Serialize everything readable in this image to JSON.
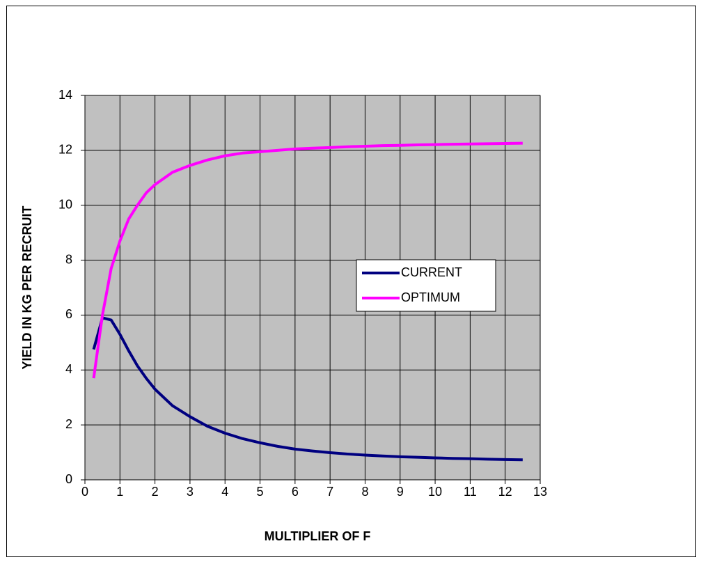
{
  "chart_data": {
    "type": "line",
    "xlabel": "MULTIPLIER OF F",
    "ylabel": "YIELD IN KG PER RECRUIT",
    "x": [
      0.25,
      0.5,
      0.75,
      1,
      1.25,
      1.5,
      1.75,
      2,
      2.5,
      3,
      3.5,
      4,
      4.5,
      5,
      5.5,
      6,
      6.5,
      7,
      7.5,
      8,
      8.5,
      9,
      9.5,
      10,
      10.5,
      11,
      11.5,
      12,
      12.5
    ],
    "series": [
      {
        "name": "CURRENT",
        "color": "#000080",
        "values": [
          4.75,
          5.9,
          5.82,
          5.3,
          4.7,
          4.15,
          3.7,
          3.3,
          2.7,
          2.3,
          1.95,
          1.7,
          1.5,
          1.35,
          1.22,
          1.12,
          1.05,
          0.99,
          0.94,
          0.9,
          0.87,
          0.84,
          0.82,
          0.8,
          0.78,
          0.77,
          0.75,
          0.74,
          0.73
        ]
      },
      {
        "name": "OPTIMUM",
        "color": "#ff00ff",
        "values": [
          3.7,
          6.0,
          7.7,
          8.7,
          9.5,
          10.0,
          10.45,
          10.75,
          11.2,
          11.45,
          11.65,
          11.8,
          11.9,
          11.95,
          12.0,
          12.05,
          12.08,
          12.1,
          12.13,
          12.15,
          12.17,
          12.18,
          12.2,
          12.21,
          12.22,
          12.23,
          12.24,
          12.25,
          12.26
        ]
      }
    ],
    "xlim": [
      0,
      13
    ],
    "xticks": [
      0,
      1,
      2,
      3,
      4,
      5,
      6,
      7,
      8,
      9,
      10,
      11,
      12,
      13
    ],
    "ylim": [
      0,
      14
    ],
    "yticks": [
      0,
      2,
      4,
      6,
      8,
      10,
      12,
      14
    ],
    "grid": true,
    "plot_background": "#c0c0c0"
  }
}
